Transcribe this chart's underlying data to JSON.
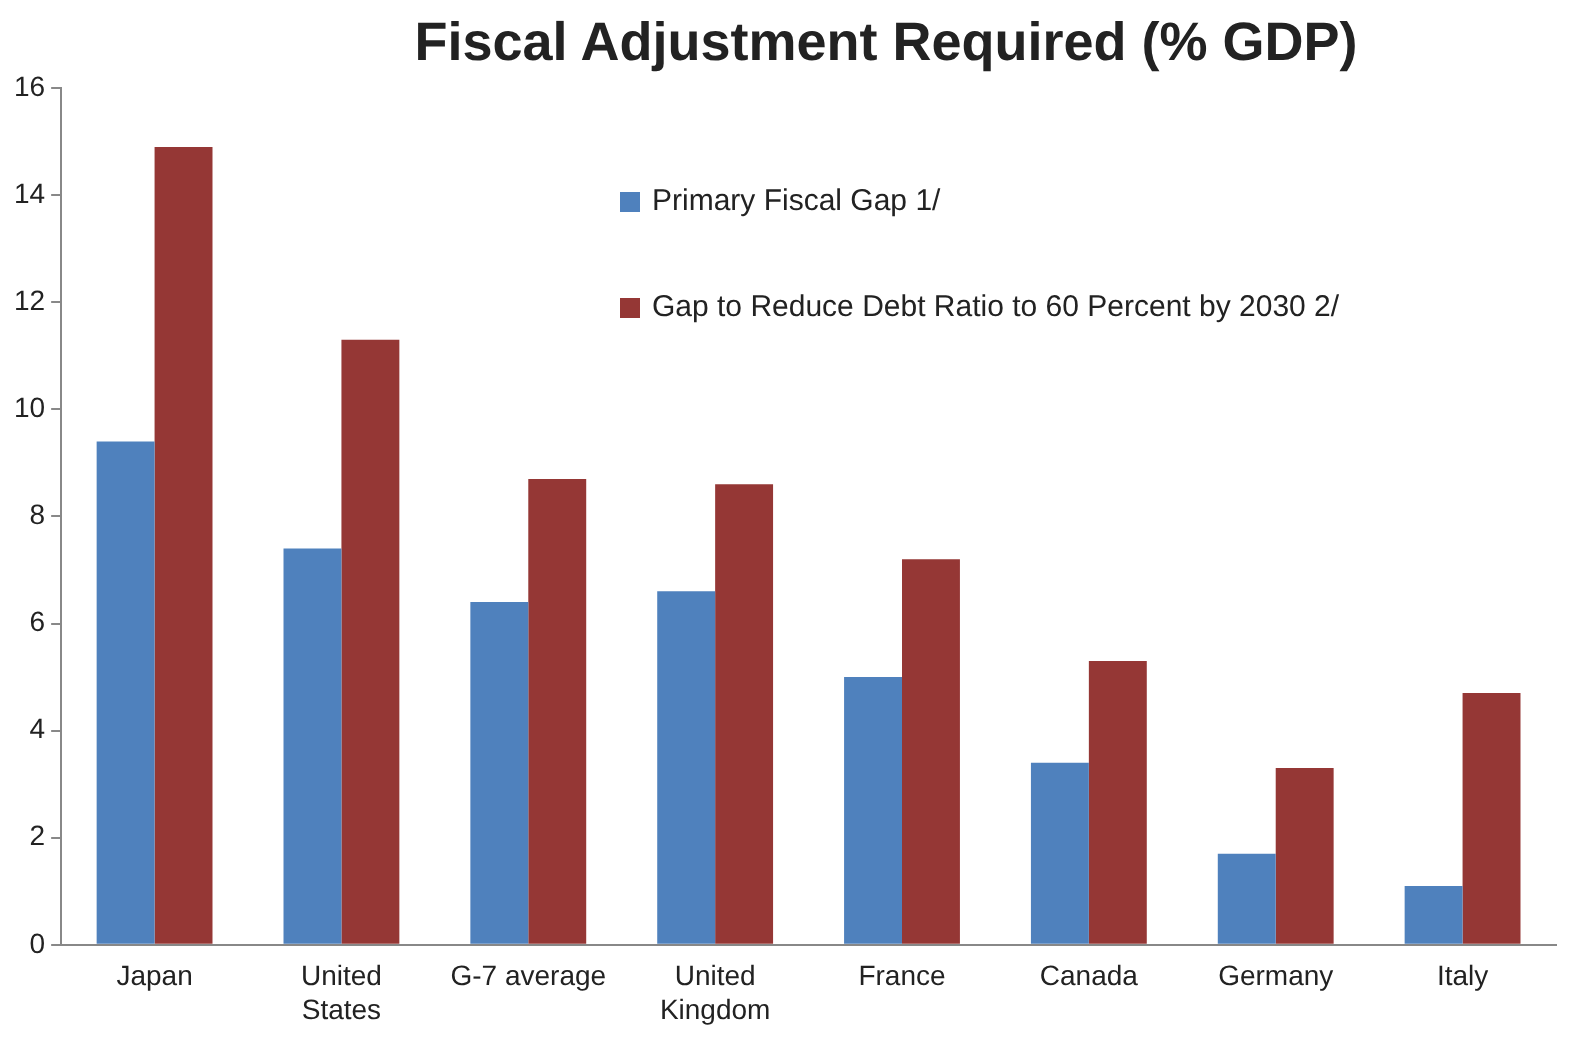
{
  "chart_data": {
    "type": "bar",
    "title": "Fiscal Adjustment Required (% GDP)",
    "categories": [
      "Japan",
      "United States",
      "G-7 average",
      "United Kingdom",
      "France",
      "Canada",
      "Germany",
      "Italy"
    ],
    "series": [
      {
        "name": "Primary Fiscal Gap 1/",
        "color": "#4f81bd",
        "values": [
          9.4,
          7.4,
          6.4,
          6.6,
          5.0,
          3.4,
          1.7,
          1.1
        ]
      },
      {
        "name": "Gap to Reduce Debt Ratio to 60 Percent by 2030 2/",
        "color": "#953735",
        "values": [
          14.9,
          11.3,
          8.7,
          8.6,
          7.2,
          5.3,
          3.3,
          4.7
        ]
      }
    ],
    "ylim": [
      0,
      16
    ],
    "yticks": [
      0,
      2,
      4,
      6,
      8,
      10,
      12,
      14,
      16
    ],
    "grid": false,
    "legend": "top right"
  }
}
